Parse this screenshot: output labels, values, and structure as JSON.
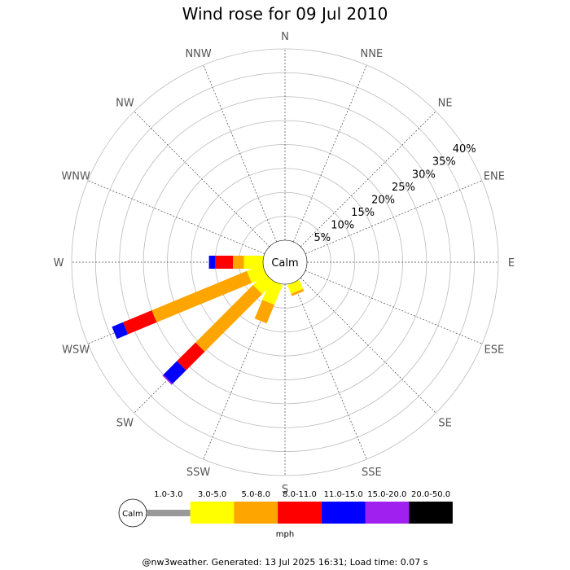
{
  "chart_data": {
    "type": "windrose",
    "title": "Wind rose for 09 Jul 2010",
    "directions": [
      "N",
      "NNE",
      "NE",
      "ENE",
      "E",
      "ESE",
      "SE",
      "SSE",
      "S",
      "SSW",
      "SW",
      "WSW",
      "W",
      "WNW",
      "NW",
      "NNW"
    ],
    "radial_ticks": [
      "5%",
      "10%",
      "15%",
      "20%",
      "25%",
      "30%",
      "35%",
      "40%"
    ],
    "radial_max": 40,
    "grid": true,
    "calm_label": "Calm",
    "speed_bins": [
      {
        "label": "Calm",
        "color": "#ffffff"
      },
      {
        "label": "1.0-3.0",
        "color": "#999999"
      },
      {
        "label": "3.0-5.0",
        "color": "#ffff00"
      },
      {
        "label": "5.0-8.0",
        "color": "#ffa500"
      },
      {
        "label": "8.0-11.0",
        "color": "#ff0000"
      },
      {
        "label": "11.0-15.0",
        "color": "#0000ff"
      },
      {
        "label": "15.0-20.0",
        "color": "#a020f0"
      },
      {
        "label": "20.0-50.0",
        "color": "#000000"
      }
    ],
    "units": "mph",
    "series": [
      {
        "direction": "SSE",
        "segments": [
          {
            "bin": "3.0-5.0",
            "cumulative": 2.0
          },
          {
            "bin": "5.0-8.0",
            "cumulative": 2.5
          }
        ]
      },
      {
        "direction": "S",
        "segments": []
      },
      {
        "direction": "SSW",
        "segments": [
          {
            "bin": "3.0-5.0",
            "cumulative": 4.5
          },
          {
            "bin": "5.0-8.0",
            "cumulative": 8.7
          }
        ]
      },
      {
        "direction": "SW",
        "segments": [
          {
            "bin": "3.0-5.0",
            "cumulative": 3.5
          },
          {
            "bin": "5.0-8.0",
            "cumulative": 20.5
          },
          {
            "bin": "8.0-11.0",
            "cumulative": 26.0
          },
          {
            "bin": "11.0-15.0",
            "cumulative": 30.0
          },
          {
            "bin": "15.0-20.0",
            "cumulative": 30.3
          }
        ]
      },
      {
        "direction": "WSW",
        "segments": [
          {
            "bin": "3.0-5.0",
            "cumulative": 3.5
          },
          {
            "bin": "5.0-8.0",
            "cumulative": 25.0
          },
          {
            "bin": "8.0-11.0",
            "cumulative": 31.5
          },
          {
            "bin": "11.0-15.0",
            "cumulative": 34.0
          }
        ]
      },
      {
        "direction": "W",
        "segments": [
          {
            "bin": "3.0-5.0",
            "cumulative": 4.0
          },
          {
            "bin": "5.0-8.0",
            "cumulative": 6.3
          },
          {
            "bin": "8.0-11.0",
            "cumulative": 10.0
          },
          {
            "bin": "11.0-15.0",
            "cumulative": 11.3
          }
        ]
      }
    ]
  },
  "footer": "@nw3weather. Generated: 13 Jul 2025 16:31; Load time: 0.07 s"
}
